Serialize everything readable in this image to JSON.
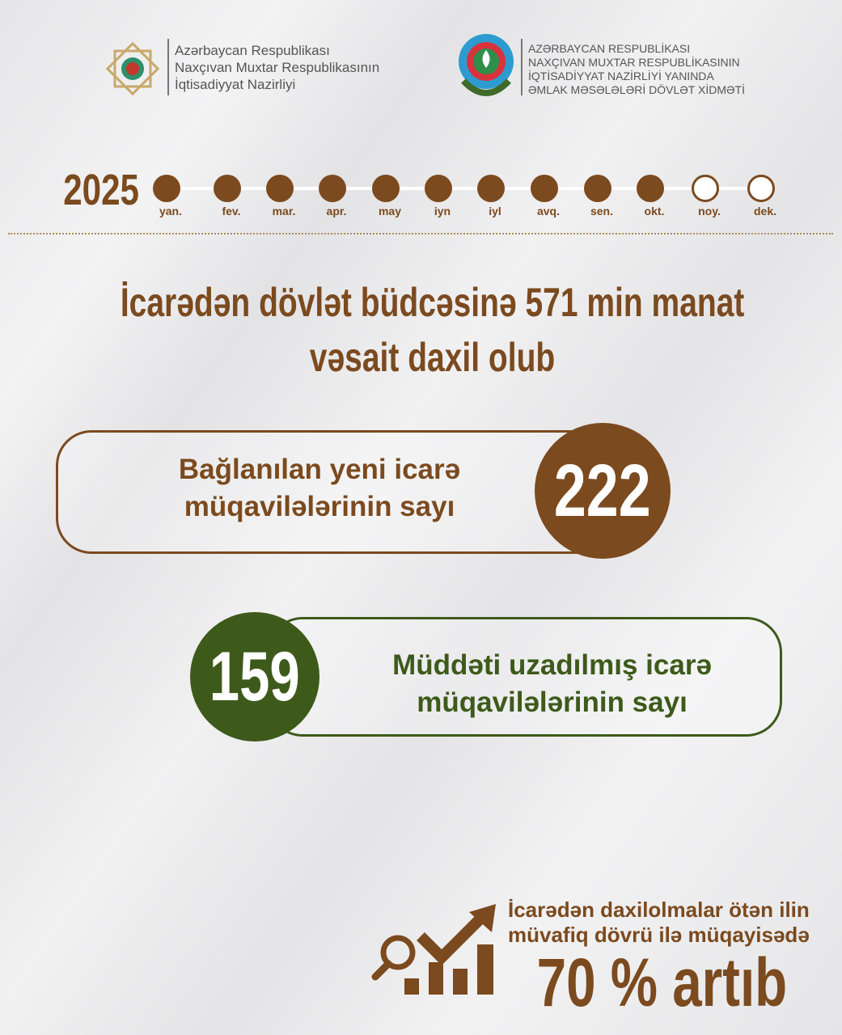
{
  "header": {
    "left_logo": {
      "lines": [
        "Azərbaycan Respublikası",
        "Naxçıvan Muxtar Respublikasının",
        "İqtisadiyyat Nazirliyi"
      ]
    },
    "right_logo": {
      "lines": [
        "AZƏRBAYCAN RESPUBLİKASI",
        "NAXÇIVAN MUXTAR RESPUBLİKASININ",
        "İQTİSADİYYAT NAZİRLİYİ YANINDA",
        "ƏMLAK MƏSƏLƏLƏRİ DÖVLƏT XİDMƏTİ"
      ]
    }
  },
  "timeline": {
    "year": "2025",
    "months": [
      {
        "label": "yan.",
        "filled": true
      },
      {
        "label": "fev.",
        "filled": true
      },
      {
        "label": "mar.",
        "filled": true
      },
      {
        "label": "apr.",
        "filled": true
      },
      {
        "label": "may",
        "filled": true
      },
      {
        "label": "iyn",
        "filled": true
      },
      {
        "label": "iyl",
        "filled": true
      },
      {
        "label": "avq.",
        "filled": true
      },
      {
        "label": "sen.",
        "filled": true
      },
      {
        "label": "okt.",
        "filled": true
      },
      {
        "label": "noy.",
        "filled": false
      },
      {
        "label": "dek.",
        "filled": false
      }
    ]
  },
  "headline": {
    "line1": "İcarədən dövlət büdcəsinə 571 min manat",
    "line2": "vəsait daxil olub"
  },
  "stat1": {
    "line1": "Bağlanılan yeni icarə",
    "line2": "müqavilələrinin sayı",
    "value": "222"
  },
  "stat2": {
    "line1": "Müddəti uzadılmış icarə",
    "line2": "müqavilələrinin sayı",
    "value": "159"
  },
  "growth": {
    "line1": "İcarədən daxilolmalar ötən ilin",
    "line2": "müvafiq dövrü ilə müqayisədə",
    "value": "70 % artıb"
  },
  "colors": {
    "brown": "#7b4a1e",
    "green": "#3d5a1a"
  }
}
